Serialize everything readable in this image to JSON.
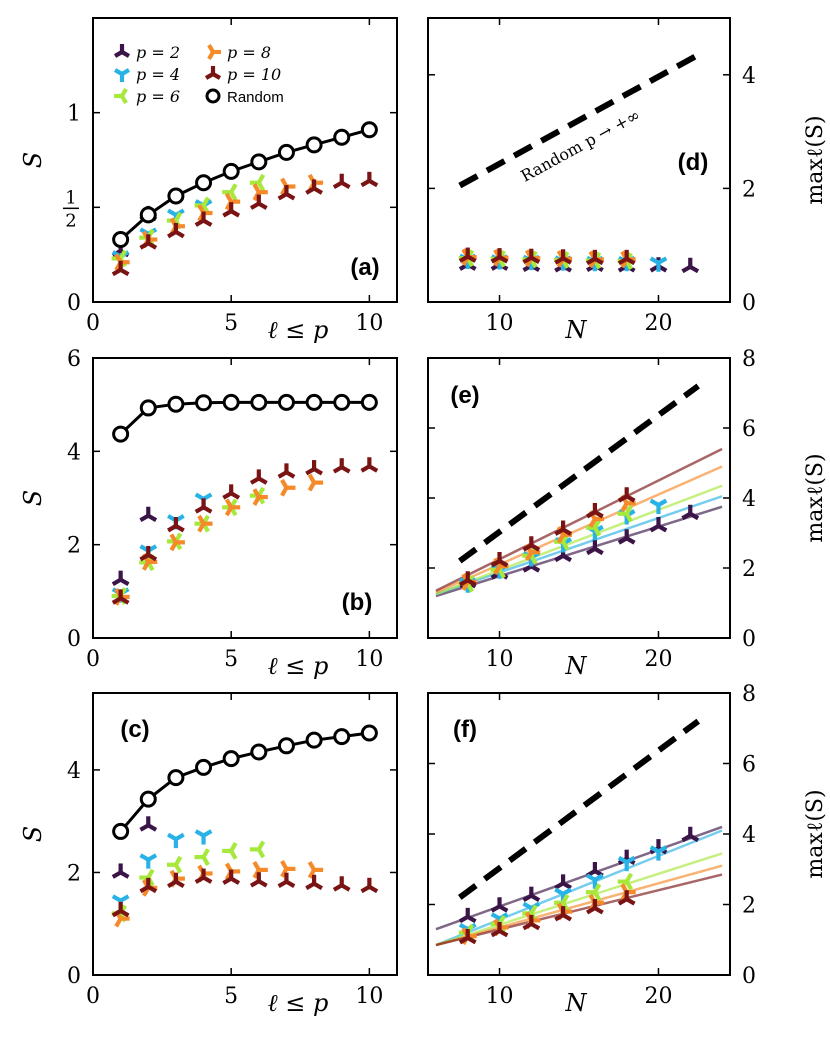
{
  "colors": {
    "p2": "#3b1548",
    "p4": "#29b2e6",
    "p6": "#a6e83c",
    "p8": "#f58a2a",
    "p10": "#7a1414",
    "random": "#000000"
  },
  "legend": {
    "p2": "p = 2",
    "p4": "p = 4",
    "p6": "p = 6",
    "p8": "p = 8",
    "p10": "p = 10",
    "random": "Random"
  },
  "chart_data": [
    {
      "id": "a",
      "type": "scatter",
      "panel_label": "(a)",
      "xlabel": "ℓ ≤ p",
      "ylabel": "S",
      "xlim": [
        0,
        11
      ],
      "ylim": [
        0,
        1.5
      ],
      "xticks": [
        "0",
        "5",
        "10"
      ],
      "yticks": [
        "0",
        "1/2",
        "1"
      ],
      "legend_position": "top-left",
      "random": {
        "x": [
          1,
          2,
          3,
          4,
          5,
          6,
          7,
          8,
          9,
          10
        ],
        "y": [
          0.33,
          0.46,
          0.56,
          0.63,
          0.69,
          0.74,
          0.79,
          0.83,
          0.87,
          0.91
        ]
      },
      "series": [
        {
          "key": "p2",
          "x": [
            1,
            2
          ],
          "y": [
            0.27,
            0.46
          ]
        },
        {
          "key": "p4",
          "x": [
            1,
            2,
            3,
            4
          ],
          "y": [
            0.24,
            0.36,
            0.46,
            0.51
          ]
        },
        {
          "key": "p6",
          "x": [
            1,
            2,
            3,
            4,
            5,
            6
          ],
          "y": [
            0.23,
            0.34,
            0.43,
            0.51,
            0.58,
            0.63
          ]
        },
        {
          "key": "p8",
          "x": [
            1,
            2,
            3,
            4,
            5,
            6,
            7,
            8
          ],
          "y": [
            0.21,
            0.33,
            0.4,
            0.47,
            0.53,
            0.58,
            0.61,
            0.63
          ]
        },
        {
          "key": "p10",
          "x": [
            1,
            2,
            3,
            4,
            5,
            6,
            7,
            8,
            9,
            10
          ],
          "y": [
            0.17,
            0.31,
            0.37,
            0.43,
            0.48,
            0.52,
            0.57,
            0.6,
            0.63,
            0.64
          ]
        }
      ]
    },
    {
      "id": "d",
      "type": "scatter",
      "panel_label": "(d)",
      "xlabel": "N",
      "ylabel": "maxℓ(S)",
      "xlim": [
        5.5,
        24.5
      ],
      "ylim": [
        0,
        5
      ],
      "xticks": [
        "10",
        "20"
      ],
      "yticks": [
        "0",
        "2",
        "4"
      ],
      "random_line": {
        "label": "Random p → +∞",
        "x": [
          7.5,
          22.5
        ],
        "y": [
          2.05,
          4.35
        ]
      },
      "series": [
        {
          "key": "p2",
          "x": [
            8,
            10,
            12,
            14,
            16,
            18,
            20,
            22
          ],
          "y": [
            0.66,
            0.66,
            0.64,
            0.63,
            0.64,
            0.63,
            0.63,
            0.62
          ]
        },
        {
          "key": "p4",
          "x": [
            8,
            10,
            12,
            14,
            16,
            18,
            20
          ],
          "y": [
            0.74,
            0.73,
            0.72,
            0.71,
            0.7,
            0.7,
            0.69
          ]
        },
        {
          "key": "p6",
          "x": [
            8,
            10,
            12,
            14,
            16,
            18
          ],
          "y": [
            0.77,
            0.76,
            0.75,
            0.74,
            0.73,
            0.72
          ]
        },
        {
          "key": "p8",
          "x": [
            8,
            10,
            12,
            14,
            16,
            18
          ],
          "y": [
            0.79,
            0.78,
            0.77,
            0.76,
            0.75,
            0.75
          ]
        },
        {
          "key": "p10",
          "x": [
            8,
            10,
            12,
            14,
            16,
            18
          ],
          "y": [
            0.8,
            0.79,
            0.78,
            0.77,
            0.76,
            0.76
          ]
        }
      ]
    },
    {
      "id": "b",
      "type": "scatter",
      "panel_label": "(b)",
      "xlabel": "ℓ ≤ p",
      "ylabel": "S",
      "xlim": [
        0,
        11
      ],
      "ylim": [
        0,
        6
      ],
      "xticks": [
        "0",
        "5",
        "10"
      ],
      "yticks": [
        "0",
        "2",
        "4",
        "6"
      ],
      "random": {
        "x": [
          1,
          2,
          3,
          4,
          5,
          6,
          7,
          8,
          9,
          10
        ],
        "y": [
          4.37,
          4.93,
          5.01,
          5.04,
          5.05,
          5.05,
          5.05,
          5.05,
          5.05,
          5.05
        ]
      },
      "series": [
        {
          "key": "p2",
          "x": [
            1,
            2
          ],
          "y": [
            1.25,
            2.62
          ]
        },
        {
          "key": "p4",
          "x": [
            1,
            2,
            3,
            4
          ],
          "y": [
            0.95,
            1.87,
            2.52,
            2.98
          ]
        },
        {
          "key": "p6",
          "x": [
            1,
            2,
            3,
            4,
            5,
            6
          ],
          "y": [
            0.9,
            1.62,
            2.07,
            2.45,
            2.8,
            3.05
          ]
        },
        {
          "key": "p8",
          "x": [
            1,
            2,
            3,
            4,
            5,
            6,
            7,
            8
          ],
          "y": [
            0.88,
            1.63,
            2.05,
            2.45,
            2.8,
            3.02,
            3.22,
            3.33
          ]
        },
        {
          "key": "p10",
          "x": [
            1,
            2,
            3,
            4,
            5,
            6,
            7,
            8,
            9,
            10
          ],
          "y": [
            0.85,
            1.78,
            2.4,
            2.8,
            3.1,
            3.42,
            3.55,
            3.62,
            3.66,
            3.68
          ]
        }
      ]
    },
    {
      "id": "e",
      "type": "scatter",
      "panel_label": "(e)",
      "xlabel": "N",
      "ylabel": "maxℓ(S)",
      "xlim": [
        5.5,
        24.5
      ],
      "ylim": [
        0,
        8
      ],
      "xticks": [
        "10",
        "20"
      ],
      "yticks": [
        "0",
        "2",
        "4",
        "6",
        "8"
      ],
      "random_line": {
        "x": [
          7.5,
          22.5
        ],
        "y": [
          2.2,
          7.2
        ]
      },
      "series": [
        {
          "key": "p2",
          "x": [
            8,
            10,
            12,
            14,
            16,
            18,
            20,
            22
          ],
          "y": [
            1.6,
            1.85,
            2.05,
            2.35,
            2.55,
            2.85,
            3.2,
            3.55
          ],
          "fit": [
            [
              6,
              1.2
            ],
            [
              24,
              3.75
            ]
          ]
        },
        {
          "key": "p4",
          "x": [
            8,
            10,
            12,
            14,
            16,
            18,
            20
          ],
          "y": [
            1.55,
            1.95,
            2.3,
            2.7,
            3.05,
            3.5,
            3.8
          ],
          "fit": [
            [
              6,
              1.25
            ],
            [
              24,
              4.05
            ]
          ]
        },
        {
          "key": "p6",
          "x": [
            8,
            10,
            12,
            14,
            16,
            18
          ],
          "y": [
            1.55,
            1.95,
            2.35,
            2.75,
            3.15,
            3.55
          ],
          "fit": [
            [
              6,
              1.25
            ],
            [
              24,
              4.35
            ]
          ]
        },
        {
          "key": "p8",
          "x": [
            8,
            10,
            12,
            14,
            16,
            18
          ],
          "y": [
            1.6,
            2.05,
            2.45,
            2.95,
            3.4,
            3.85
          ],
          "fit": [
            [
              6,
              1.3
            ],
            [
              24,
              4.9
            ]
          ]
        },
        {
          "key": "p10",
          "x": [
            8,
            10,
            12,
            14,
            16,
            18
          ],
          "y": [
            1.65,
            2.2,
            2.65,
            3.1,
            3.6,
            4.05
          ],
          "fit": [
            [
              6,
              1.35
            ],
            [
              24,
              5.4
            ]
          ]
        }
      ]
    },
    {
      "id": "c",
      "type": "scatter",
      "panel_label": "(c)",
      "xlabel": "ℓ ≤ p",
      "ylabel": "S",
      "xlim": [
        0,
        11
      ],
      "ylim": [
        0,
        5.5
      ],
      "xticks": [
        "0",
        "5",
        "10"
      ],
      "yticks": [
        "0",
        "2",
        "4"
      ],
      "random": {
        "x": [
          1,
          2,
          3,
          4,
          5,
          6,
          7,
          8,
          9,
          10
        ],
        "y": [
          2.8,
          3.43,
          3.85,
          4.05,
          4.22,
          4.35,
          4.47,
          4.58,
          4.65,
          4.72
        ]
      },
      "series": [
        {
          "key": "p2",
          "x": [
            1,
            2
          ],
          "y": [
            2.0,
            2.92
          ]
        },
        {
          "key": "p4",
          "x": [
            1,
            2,
            3,
            4
          ],
          "y": [
            1.45,
            2.25,
            2.65,
            2.72
          ]
        },
        {
          "key": "p6",
          "x": [
            1,
            2,
            3,
            4,
            5,
            6
          ],
          "y": [
            1.2,
            1.9,
            2.15,
            2.3,
            2.42,
            2.45
          ]
        },
        {
          "key": "p8",
          "x": [
            1,
            2,
            3,
            4,
            5,
            6,
            7,
            8
          ],
          "y": [
            1.1,
            1.7,
            1.88,
            1.98,
            2.02,
            2.05,
            2.07,
            2.05
          ]
        },
        {
          "key": "p10",
          "x": [
            1,
            2,
            3,
            4,
            5,
            6,
            7,
            8,
            9,
            10
          ],
          "y": [
            1.25,
            1.72,
            1.82,
            1.9,
            1.88,
            1.83,
            1.82,
            1.78,
            1.75,
            1.72
          ]
        }
      ]
    },
    {
      "id": "f",
      "type": "scatter",
      "panel_label": "(f)",
      "xlabel": "N",
      "ylabel": "maxℓ(S)",
      "xlim": [
        5.5,
        24.5
      ],
      "ylim": [
        0,
        8
      ],
      "xticks": [
        "10",
        "20"
      ],
      "yticks": [
        "0",
        "2",
        "4",
        "6",
        "8"
      ],
      "random_line": {
        "x": [
          7.5,
          22.5
        ],
        "y": [
          2.2,
          7.2
        ]
      },
      "series": [
        {
          "key": "p2",
          "x": [
            8,
            10,
            12,
            14,
            16,
            18,
            20,
            22
          ],
          "y": [
            1.65,
            1.95,
            2.25,
            2.6,
            2.95,
            3.3,
            3.6,
            3.95
          ],
          "fit": [
            [
              6,
              1.3
            ],
            [
              24,
              4.2
            ]
          ]
        },
        {
          "key": "p4",
          "x": [
            8,
            10,
            12,
            14,
            16,
            18,
            20
          ],
          "y": [
            1.3,
            1.6,
            1.9,
            2.3,
            2.7,
            3.2,
            3.5
          ],
          "fit": [
            [
              6,
              0.85
            ],
            [
              24,
              4.1
            ]
          ]
        },
        {
          "key": "p6",
          "x": [
            8,
            10,
            12,
            14,
            16,
            18
          ],
          "y": [
            1.2,
            1.45,
            1.75,
            2.05,
            2.35,
            2.65
          ],
          "fit": [
            [
              6,
              0.85
            ],
            [
              24,
              3.45
            ]
          ]
        },
        {
          "key": "p8",
          "x": [
            8,
            10,
            12,
            14,
            16,
            18
          ],
          "y": [
            1.1,
            1.35,
            1.55,
            1.8,
            2.05,
            2.35
          ],
          "fit": [
            [
              6,
              0.85
            ],
            [
              24,
              3.1
            ]
          ]
        },
        {
          "key": "p10",
          "x": [
            8,
            10,
            12,
            14,
            16,
            18
          ],
          "y": [
            1.05,
            1.25,
            1.45,
            1.7,
            1.9,
            2.15
          ],
          "fit": [
            [
              6,
              0.85
            ],
            [
              24,
              2.85
            ]
          ]
        }
      ]
    }
  ]
}
